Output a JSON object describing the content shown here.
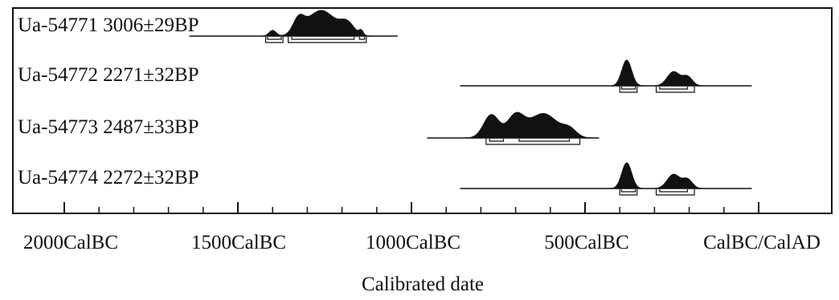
{
  "chart_data": {
    "type": "area",
    "xlabel": "Calibrated date",
    "x_unit": "calendar year (negative = BC)",
    "xlim": [
      -2050,
      50
    ],
    "major_ticks": [
      {
        "value": -2000,
        "label": "2000CalBC"
      },
      {
        "value": -1500,
        "label": "1500CalBC"
      },
      {
        "value": -1000,
        "label": "1000CalBC"
      },
      {
        "value": -500,
        "label": "500CalBC"
      },
      {
        "value": 0,
        "label": "CalBC/CalAD"
      }
    ],
    "minor_tick_step": 100,
    "samples": [
      {
        "label": "Ua-54771  3006±29BP",
        "line": [
          -1640,
          -1040
        ],
        "peaks": [
          {
            "center": -1400,
            "width": 10,
            "height": 0.22
          },
          {
            "center": -1325,
            "width": 16,
            "height": 0.55
          },
          {
            "center": -1260,
            "width": 40,
            "height": 1.0
          },
          {
            "center": -1185,
            "width": 20,
            "height": 0.45
          },
          {
            "center": -1145,
            "width": 6,
            "height": 0.18
          }
        ],
        "ranges": [
          [
            -1415,
            -1375
          ],
          [
            -1345,
            -1165
          ],
          [
            -1150,
            -1135
          ]
        ],
        "ranges_2sigma": [
          [
            -1420,
            -1370
          ],
          [
            -1355,
            -1130
          ]
        ]
      },
      {
        "label": "Ua-54772  2271±32BP",
        "line": [
          -860,
          -20
        ],
        "peaks": [
          {
            "center": -380,
            "width": 14,
            "height": 1.0
          },
          {
            "center": -245,
            "width": 18,
            "height": 0.55
          },
          {
            "center": -205,
            "width": 14,
            "height": 0.35
          }
        ],
        "ranges": [
          [
            -395,
            -355
          ],
          [
            -285,
            -205
          ]
        ],
        "ranges_2sigma": [
          [
            -400,
            -350
          ],
          [
            -295,
            -185
          ]
        ]
      },
      {
        "label": "Ua-54773  2487±33BP",
        "line": [
          -955,
          -460
        ],
        "peaks": [
          {
            "center": -770,
            "width": 22,
            "height": 0.9
          },
          {
            "center": -700,
            "width": 24,
            "height": 0.85
          },
          {
            "center": -620,
            "width": 40,
            "height": 0.95
          },
          {
            "center": -545,
            "width": 20,
            "height": 0.3
          }
        ],
        "ranges": [
          [
            -775,
            -735
          ],
          [
            -690,
            -545
          ]
        ],
        "ranges_2sigma": [
          [
            -785,
            -515
          ]
        ]
      },
      {
        "label": "Ua-54774  2272±32BP",
        "line": [
          -860,
          -20
        ],
        "peaks": [
          {
            "center": -380,
            "width": 14,
            "height": 1.0
          },
          {
            "center": -245,
            "width": 18,
            "height": 0.55
          },
          {
            "center": -205,
            "width": 14,
            "height": 0.35
          }
        ],
        "ranges": [
          [
            -395,
            -355
          ],
          [
            -285,
            -205
          ]
        ],
        "ranges_2sigma": [
          [
            -400,
            -350
          ],
          [
            -295,
            -185
          ]
        ]
      }
    ]
  }
}
